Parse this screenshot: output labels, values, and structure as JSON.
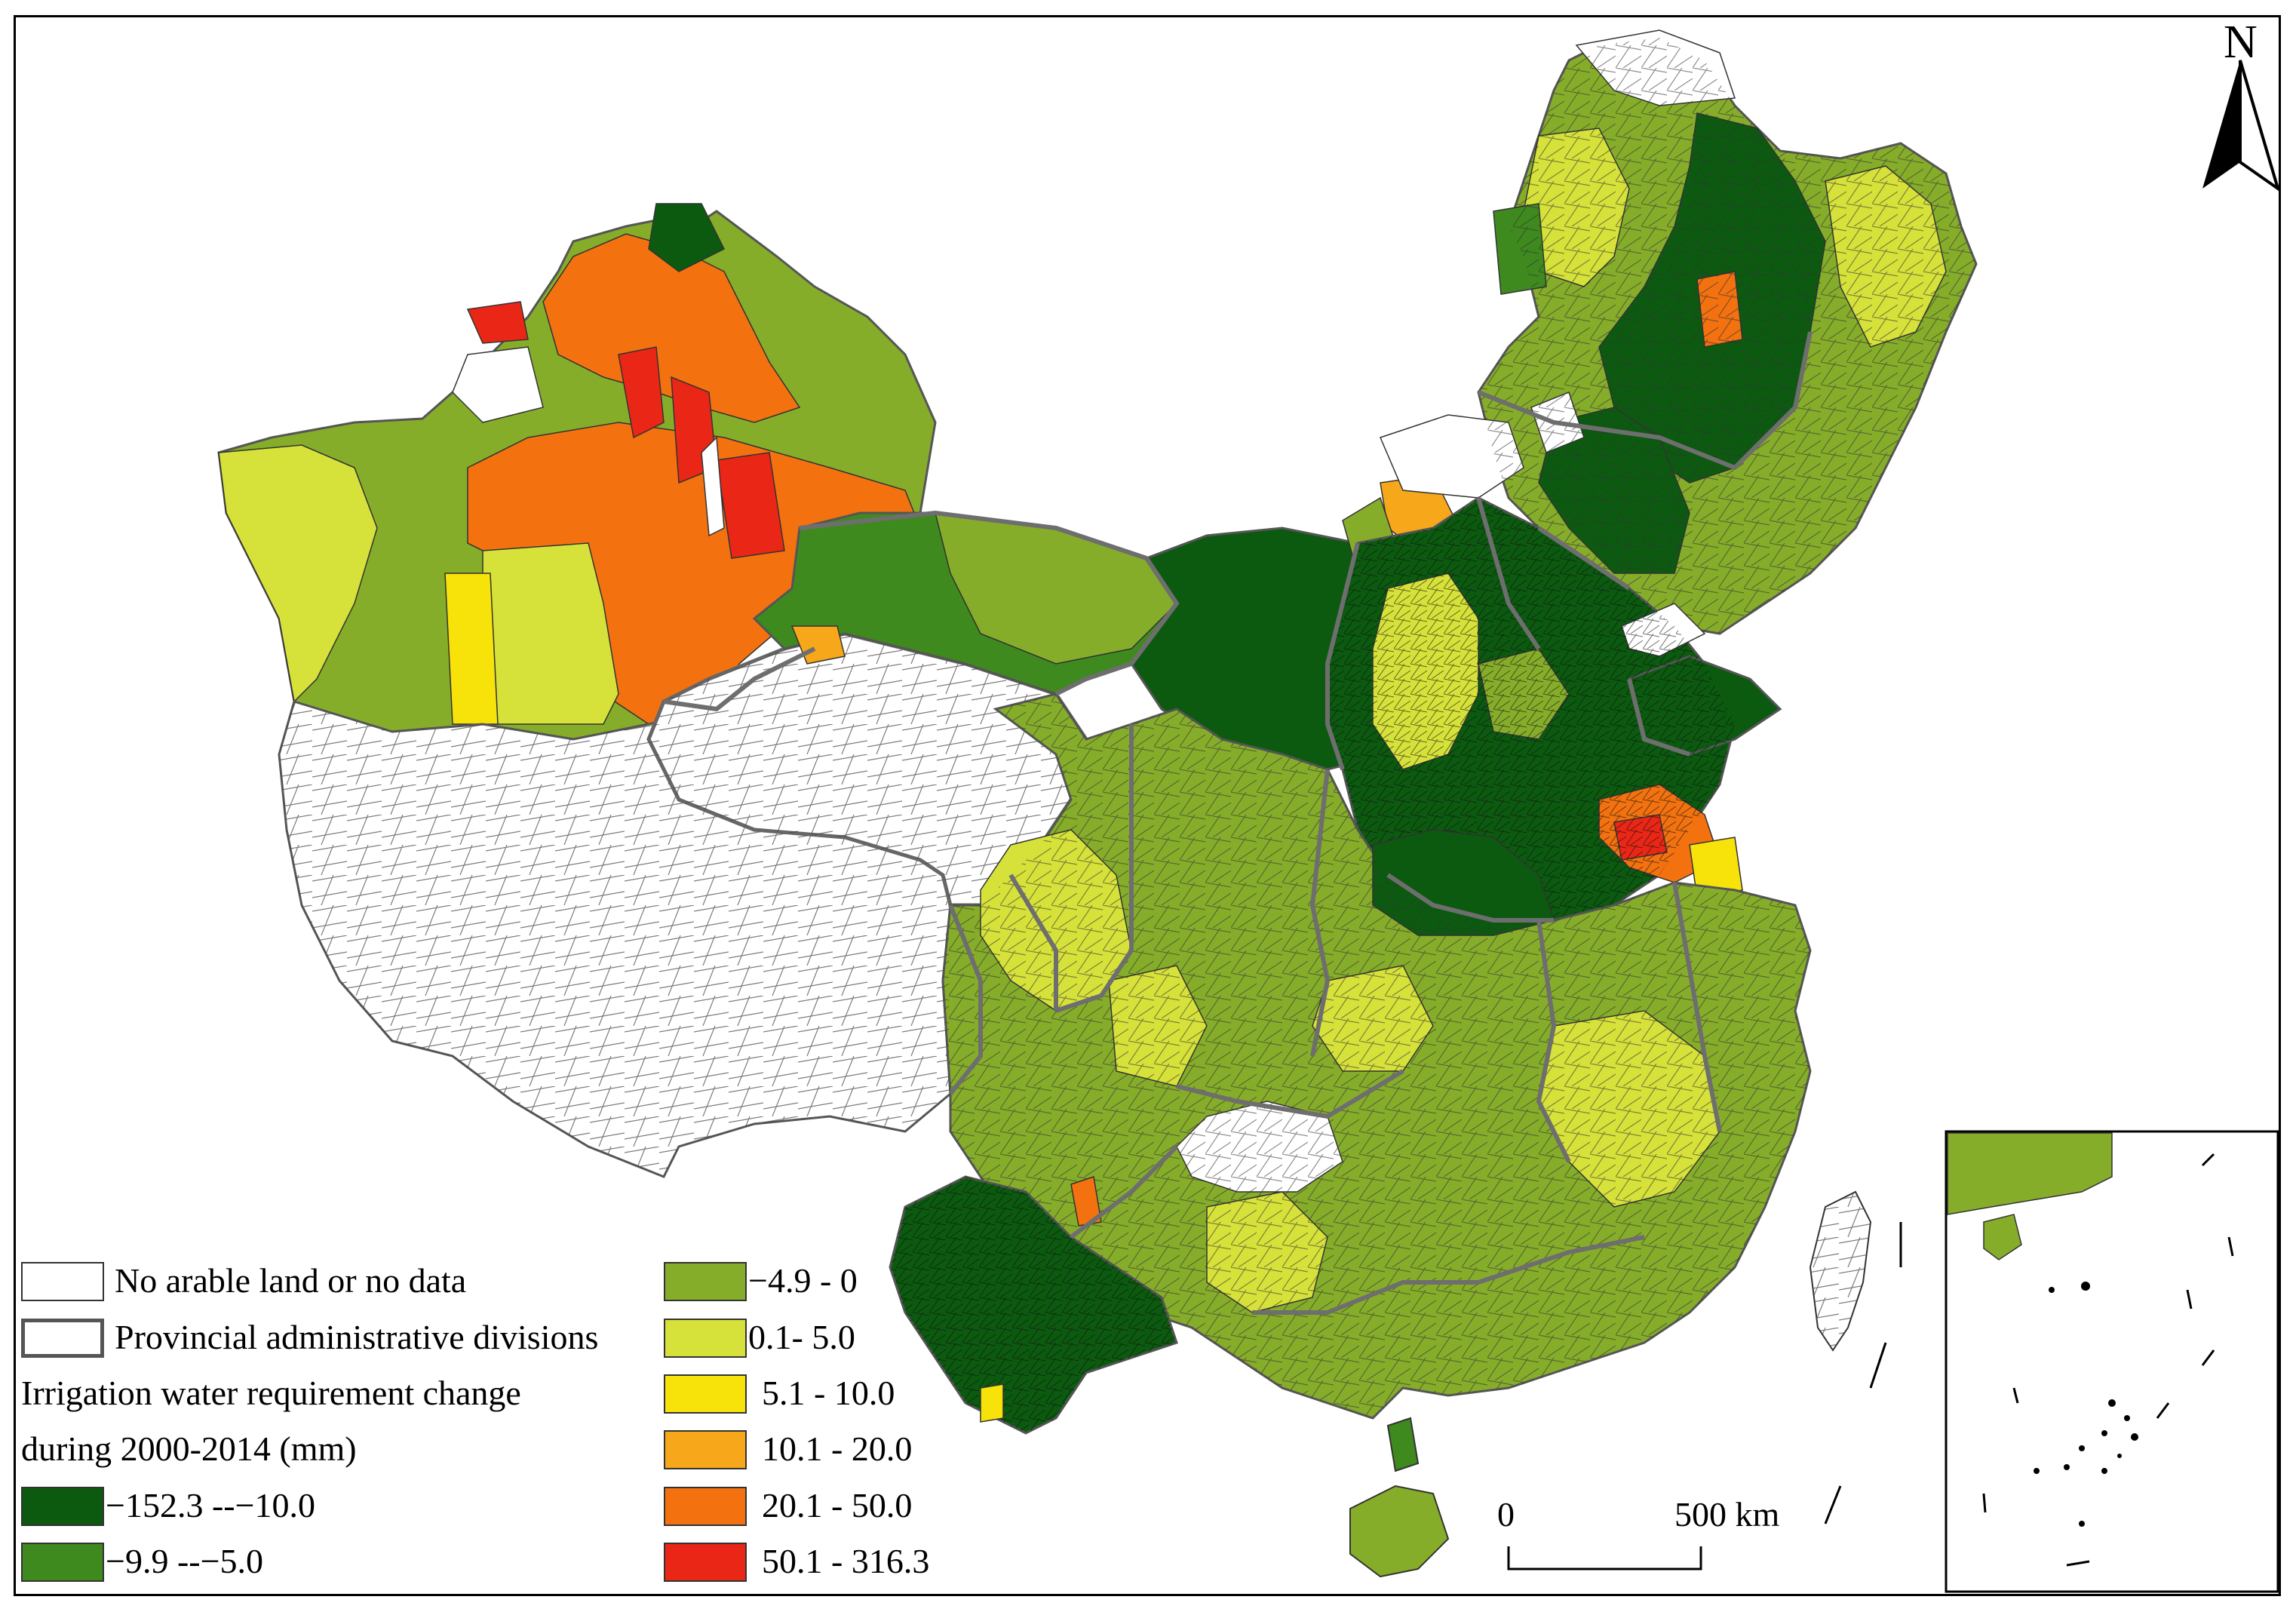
{
  "legend": {
    "no_data_label": "No arable land or no data",
    "province_label": "Provincial administrative divisions",
    "title_line1": "Irrigation water requirement change",
    "title_line2": "during 2000-2014 (mm)",
    "classes": [
      {
        "label": "−152.3 --−10.0",
        "color": "#0b5a10"
      },
      {
        "label": "−9.9 --−5.0",
        "color": "#3f8a1e"
      },
      {
        "label": "−4.9 -  0",
        "color": "#86ad2a"
      },
      {
        "label": "0.1- 5.0",
        "color": "#d6e23a"
      },
      {
        "label": "5.1 - 10.0",
        "color": "#f7e20a"
      },
      {
        "label": "10.1 - 20.0",
        "color": "#f6a71a"
      },
      {
        "label": "20.1 - 50.0",
        "color": "#f3720f"
      },
      {
        "label": "50.1 - 316.3",
        "color": "#ea2616"
      }
    ]
  },
  "scale_bar": {
    "start_label": "0",
    "end_label": "500 km"
  },
  "north_arrow": {
    "label": "N",
    "icon": "north-arrow-icon"
  },
  "colors": {
    "no_data": "#ffffff",
    "province_border": "#6e6e6e",
    "county_border": "#222222"
  }
}
